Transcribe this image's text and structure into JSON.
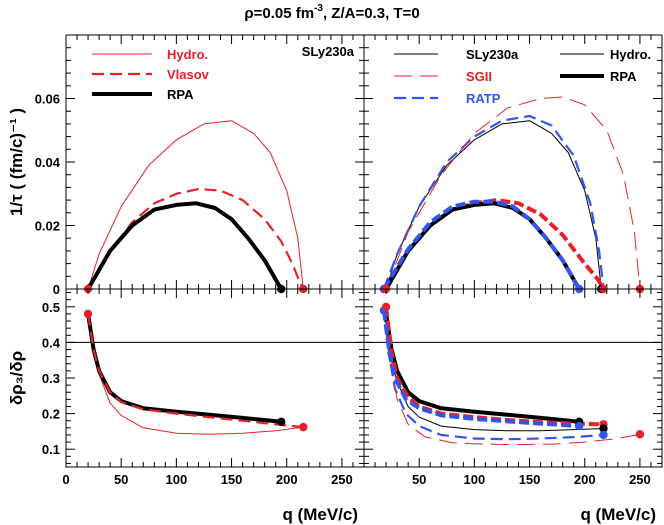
{
  "figure": {
    "title_prefix": "ρ=0.05 fm",
    "title_exp": "-3",
    "title_suffix": ", Z/A=0.3, T=0"
  },
  "colors": {
    "black": "#000000",
    "red": "#e8202a",
    "blue": "#3355ee"
  },
  "chart_data": [
    {
      "id": "top_left",
      "type": "line",
      "xlim": [
        0,
        270
      ],
      "ylim": [
        0,
        0.08
      ],
      "yticks": [
        "0",
        "0.02",
        "0.04",
        "0.06"
      ],
      "ylabel": "1/τ ( (fm/c)⁻¹ )",
      "panel_label": "SLy230a",
      "legend": [
        {
          "label": "Hydro.",
          "color": "red",
          "style": "thin"
        },
        {
          "label": "Vlasov",
          "color": "red",
          "style": "dash"
        },
        {
          "label": "RPA",
          "color": "black",
          "style": "thick"
        }
      ],
      "series": [
        {
          "name": "Hydro.",
          "color": "red",
          "style": "thin",
          "x": [
            20,
            30,
            50,
            75,
            100,
            125,
            150,
            170,
            185,
            200,
            210,
            215
          ],
          "y": [
            0,
            0.011,
            0.026,
            0.039,
            0.047,
            0.052,
            0.053,
            0.049,
            0.043,
            0.031,
            0.016,
            0
          ]
        },
        {
          "name": "Vlasov",
          "color": "red",
          "style": "dash",
          "x": [
            20,
            40,
            60,
            80,
            100,
            120,
            140,
            160,
            180,
            195,
            205,
            212,
            215
          ],
          "y": [
            0,
            0.012,
            0.021,
            0.027,
            0.03,
            0.0315,
            0.031,
            0.028,
            0.022,
            0.015,
            0.008,
            0.002,
            0
          ]
        },
        {
          "name": "RPA",
          "color": "black",
          "style": "thick",
          "x": [
            20,
            40,
            60,
            80,
            100,
            118,
            135,
            150,
            165,
            180,
            190,
            195
          ],
          "y": [
            0,
            0.012,
            0.02,
            0.025,
            0.0265,
            0.027,
            0.0255,
            0.022,
            0.016,
            0.009,
            0.003,
            0
          ]
        }
      ],
      "markers": [
        {
          "x": 20,
          "y": 0,
          "color": "red"
        },
        {
          "x": 195,
          "y": 0,
          "color": "black"
        },
        {
          "x": 215,
          "y": 0,
          "color": "red"
        }
      ]
    },
    {
      "id": "top_right",
      "type": "line",
      "xlim": [
        0,
        270
      ],
      "ylim": [
        0,
        0.08
      ],
      "legend": [
        {
          "label": "SLy230a",
          "color": "black",
          "style": "thin"
        },
        {
          "label": "Hydro.",
          "color": "black",
          "style": "thin"
        },
        {
          "label": "SGII",
          "color": "red",
          "style": "longdash"
        },
        {
          "label": "RPA",
          "color": "black",
          "style": "thick"
        },
        {
          "label": "RATP",
          "color": "blue",
          "style": "dash"
        }
      ],
      "series": [
        {
          "name": "SLy230a Hydro.",
          "color": "black",
          "style": "thin",
          "x": [
            20,
            30,
            50,
            75,
            100,
            125,
            150,
            170,
            185,
            200,
            210,
            215
          ],
          "y": [
            0,
            0.011,
            0.026,
            0.039,
            0.047,
            0.052,
            0.053,
            0.049,
            0.043,
            0.031,
            0.016,
            0
          ]
        },
        {
          "name": "RATP Hydro.",
          "color": "blue",
          "style": "dash",
          "x": [
            18,
            30,
            50,
            75,
            100,
            125,
            150,
            170,
            190,
            205,
            213,
            217
          ],
          "y": [
            0,
            0.011,
            0.026,
            0.04,
            0.048,
            0.053,
            0.0545,
            0.0515,
            0.042,
            0.027,
            0.012,
            0
          ]
        },
        {
          "name": "SGII Hydro.",
          "color": "red",
          "style": "longdash",
          "x": [
            20,
            40,
            70,
            100,
            130,
            160,
            180,
            200,
            220,
            235,
            245,
            250
          ],
          "y": [
            0,
            0.018,
            0.036,
            0.049,
            0.057,
            0.06,
            0.0605,
            0.058,
            0.05,
            0.036,
            0.018,
            0
          ]
        },
        {
          "name": "SGII RPA",
          "color": "red",
          "style": "thickdash",
          "x": [
            20,
            40,
            60,
            80,
            100,
            120,
            140,
            160,
            180,
            200,
            212,
            217
          ],
          "y": [
            0,
            0.012,
            0.02,
            0.025,
            0.027,
            0.028,
            0.027,
            0.0235,
            0.017,
            0.008,
            0.003,
            0
          ]
        },
        {
          "name": "SLy230a RPA",
          "color": "black",
          "style": "thick",
          "x": [
            20,
            40,
            60,
            80,
            100,
            118,
            135,
            150,
            165,
            180,
            190,
            195
          ],
          "y": [
            0,
            0.012,
            0.02,
            0.025,
            0.0265,
            0.027,
            0.0255,
            0.022,
            0.016,
            0.009,
            0.003,
            0
          ]
        },
        {
          "name": "RATP RPA",
          "color": "blue",
          "style": "thickdash",
          "x": [
            18,
            40,
            60,
            80,
            100,
            118,
            135,
            150,
            165,
            180,
            190,
            195
          ],
          "y": [
            0,
            0.0125,
            0.021,
            0.026,
            0.0275,
            0.0275,
            0.026,
            0.022,
            0.016,
            0.009,
            0.003,
            0
          ]
        }
      ],
      "markers": [
        {
          "x": 18,
          "y": 0,
          "color": "blue"
        },
        {
          "x": 20,
          "y": 0,
          "color": "red"
        },
        {
          "x": 195,
          "y": 0,
          "color": "blue"
        },
        {
          "x": 215,
          "y": 0,
          "color": "black"
        },
        {
          "x": 217,
          "y": 0,
          "color": "red"
        },
        {
          "x": 250,
          "y": 0,
          "color": "red"
        }
      ]
    },
    {
      "id": "bottom_left",
      "type": "line",
      "xlim": [
        0,
        270
      ],
      "ylim": [
        0.05,
        0.55
      ],
      "yticks": [
        "0.1",
        "0.2",
        "0.3",
        "0.4",
        "0.5"
      ],
      "xticks": [
        "0",
        "50",
        "100",
        "150",
        "200",
        "250"
      ],
      "xlabel": "q (MeV/c)",
      "ylabel": "δρ₃/δρ",
      "hline": 0.4,
      "series": [
        {
          "name": "Hydro.",
          "color": "red",
          "style": "thin",
          "x": [
            20,
            25,
            30,
            40,
            50,
            70,
            100,
            130,
            160,
            190,
            215
          ],
          "y": [
            0.48,
            0.38,
            0.31,
            0.23,
            0.195,
            0.16,
            0.145,
            0.142,
            0.145,
            0.152,
            0.162
          ]
        },
        {
          "name": "RPA",
          "color": "black",
          "style": "thick",
          "x": [
            20,
            25,
            30,
            40,
            50,
            70,
            100,
            130,
            160,
            195
          ],
          "y": [
            0.48,
            0.38,
            0.32,
            0.26,
            0.235,
            0.215,
            0.205,
            0.197,
            0.188,
            0.177
          ]
        },
        {
          "name": "Vlasov",
          "color": "red",
          "style": "dash",
          "x": [
            20,
            25,
            30,
            40,
            50,
            70,
            100,
            130,
            160,
            190,
            215
          ],
          "y": [
            0.48,
            0.38,
            0.32,
            0.26,
            0.232,
            0.212,
            0.2,
            0.19,
            0.18,
            0.17,
            0.162
          ]
        }
      ],
      "markers": [
        {
          "x": 20,
          "y": 0.48,
          "color": "red"
        },
        {
          "x": 195,
          "y": 0.177,
          "color": "black"
        },
        {
          "x": 215,
          "y": 0.162,
          "color": "red"
        }
      ]
    },
    {
      "id": "bottom_right",
      "type": "line",
      "xlim": [
        0,
        270
      ],
      "ylim": [
        0.05,
        0.55
      ],
      "xticks": [
        "0",
        "50",
        "100",
        "150",
        "200",
        "250"
      ],
      "xlabel": "q (MeV/c)",
      "hline": 0.4,
      "series": [
        {
          "name": "SLy230a Hydro.",
          "color": "black",
          "style": "thin",
          "x": [
            20,
            25,
            30,
            40,
            50,
            70,
            100,
            130,
            160,
            190,
            215
          ],
          "y": [
            0.48,
            0.36,
            0.29,
            0.22,
            0.19,
            0.165,
            0.155,
            0.152,
            0.152,
            0.155,
            0.158
          ]
        },
        {
          "name": "RATP Hydro.",
          "color": "blue",
          "style": "dash",
          "x": [
            18,
            23,
            28,
            38,
            50,
            70,
            100,
            130,
            160,
            190,
            217
          ],
          "y": [
            0.49,
            0.36,
            0.27,
            0.2,
            0.165,
            0.14,
            0.13,
            0.128,
            0.13,
            0.134,
            0.14
          ]
        },
        {
          "name": "SGII Hydro.",
          "color": "red",
          "style": "longdash",
          "x": [
            20,
            25,
            30,
            40,
            55,
            80,
            110,
            140,
            170,
            200,
            230,
            250
          ],
          "y": [
            0.5,
            0.33,
            0.24,
            0.17,
            0.135,
            0.118,
            0.114,
            0.113,
            0.114,
            0.12,
            0.13,
            0.142
          ]
        },
        {
          "name": "SLy230a RPA",
          "color": "black",
          "style": "thick",
          "x": [
            20,
            25,
            30,
            40,
            50,
            70,
            100,
            130,
            160,
            195
          ],
          "y": [
            0.48,
            0.38,
            0.32,
            0.26,
            0.235,
            0.215,
            0.205,
            0.197,
            0.188,
            0.177
          ]
        },
        {
          "name": "SGII RPA",
          "color": "red",
          "style": "thickdash",
          "x": [
            20,
            25,
            30,
            40,
            50,
            70,
            100,
            130,
            160,
            190,
            217
          ],
          "y": [
            0.5,
            0.37,
            0.3,
            0.245,
            0.22,
            0.2,
            0.19,
            0.182,
            0.176,
            0.172,
            0.17
          ]
        },
        {
          "name": "RATP RPA",
          "color": "blue",
          "style": "thickdash",
          "x": [
            18,
            23,
            28,
            38,
            50,
            70,
            100,
            130,
            160,
            195
          ],
          "y": [
            0.49,
            0.37,
            0.3,
            0.24,
            0.215,
            0.195,
            0.185,
            0.178,
            0.172,
            0.165
          ]
        }
      ],
      "markers": [
        {
          "x": 18,
          "y": 0.49,
          "color": "blue"
        },
        {
          "x": 20,
          "y": 0.5,
          "color": "red"
        },
        {
          "x": 195,
          "y": 0.177,
          "color": "black"
        },
        {
          "x": 195,
          "y": 0.165,
          "color": "blue"
        },
        {
          "x": 217,
          "y": 0.17,
          "color": "red"
        },
        {
          "x": 217,
          "y": 0.158,
          "color": "black"
        },
        {
          "x": 217,
          "y": 0.14,
          "color": "blue"
        },
        {
          "x": 250,
          "y": 0.142,
          "color": "red"
        }
      ]
    }
  ]
}
